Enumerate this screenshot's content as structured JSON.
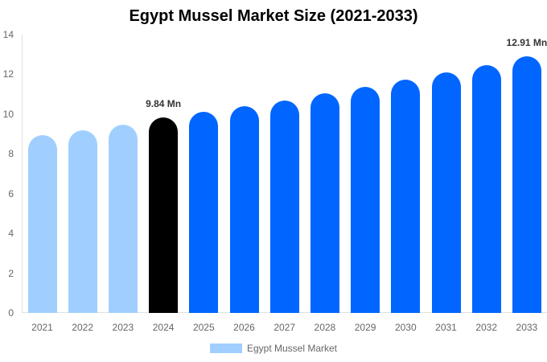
{
  "chart_data": {
    "type": "bar",
    "title": "Egypt Mussel Market Size (2021-2033)",
    "xlabel": "",
    "ylabel": "",
    "ylim": [
      0,
      14
    ],
    "yticks": [
      0,
      2,
      4,
      6,
      8,
      10,
      12,
      14
    ],
    "grid": false,
    "legend_position": "bottom",
    "categories": [
      "2021",
      "2022",
      "2023",
      "2024",
      "2025",
      "2026",
      "2027",
      "2028",
      "2029",
      "2030",
      "2031",
      "2032",
      "2033"
    ],
    "series": [
      {
        "name": "Egypt Mussel Market",
        "values": [
          8.94,
          9.19,
          9.47,
          9.84,
          10.12,
          10.4,
          10.7,
          11.03,
          11.39,
          11.72,
          12.08,
          12.46,
          12.91
        ],
        "colors": [
          "#a0cfff",
          "#a0cfff",
          "#a0cfff",
          "#000000",
          "#0066ff",
          "#0066ff",
          "#0066ff",
          "#0066ff",
          "#0066ff",
          "#0066ff",
          "#0066ff",
          "#0066ff",
          "#0066ff"
        ]
      }
    ],
    "annotations": [
      {
        "category": "2024",
        "label": "9.84 Mn"
      },
      {
        "category": "2033",
        "label": "12.91 Mn"
      }
    ]
  },
  "title": "Egypt Mussel Market Size (2021-2033)",
  "legend": {
    "label": "Egypt Mussel Market",
    "color": "#a0cfff"
  },
  "annotations": {
    "a2024": "9.84 Mn",
    "a2033": "12.91 Mn"
  }
}
